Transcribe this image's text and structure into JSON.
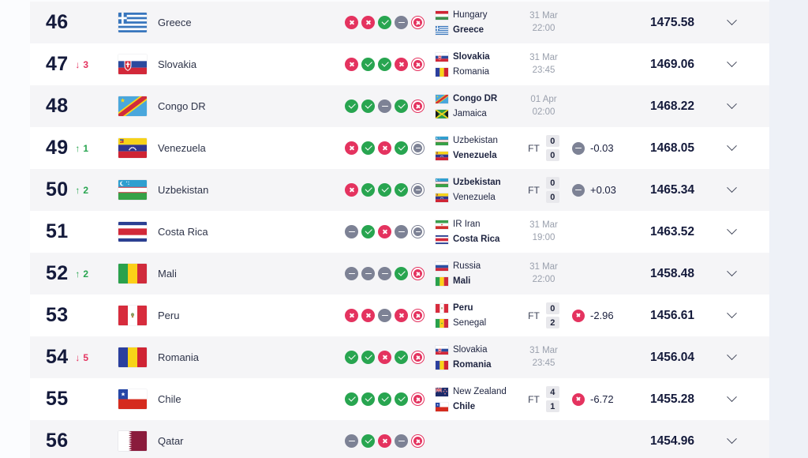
{
  "colors": {
    "win": "#28a550",
    "draw": "#7d8295",
    "loss": "#e4335f",
    "rank_up": "#28a550",
    "rank_down": "#e4335f",
    "rank_text": "#141a3b",
    "row_stripe": "#f5f5f7",
    "side_panel": "#eef1f7"
  },
  "icons": {
    "up_arrow_glyph": "↑",
    "down_arrow_glyph": "↓",
    "win_icon": "check-icon",
    "draw_icon": "minus-icon",
    "loss_icon": "cross-icon",
    "expand_icon": "chevron-down-icon"
  },
  "table": {
    "rows": [
      {
        "rank": "46",
        "movement": null,
        "country": "Greece",
        "flag": "greece",
        "form": [
          "L",
          "L",
          "W",
          "D",
          "L"
        ],
        "match": {
          "home": {
            "name": "Hungary",
            "flag": "hungary",
            "bold": false
          },
          "away": {
            "name": "Greece",
            "flag": "greece",
            "bold": true
          },
          "status": "scheduled",
          "date": "31 Mar",
          "time": "22:00"
        },
        "change": null,
        "points": "1475.58"
      },
      {
        "rank": "47",
        "movement": {
          "dir": "down",
          "value": "3"
        },
        "country": "Slovakia",
        "flag": "slovakia",
        "form": [
          "L",
          "W",
          "W",
          "L",
          "L"
        ],
        "match": {
          "home": {
            "name": "Slovakia",
            "flag": "slovakia",
            "bold": true
          },
          "away": {
            "name": "Romania",
            "flag": "romania",
            "bold": false
          },
          "status": "scheduled",
          "date": "31 Mar",
          "time": "23:45"
        },
        "change": null,
        "points": "1469.06"
      },
      {
        "rank": "48",
        "movement": null,
        "country": "Congo DR",
        "flag": "congo-dr",
        "form": [
          "W",
          "W",
          "D",
          "W",
          "L"
        ],
        "match": {
          "home": {
            "name": "Congo DR",
            "flag": "congo-dr",
            "bold": true
          },
          "away": {
            "name": "Jamaica",
            "flag": "jamaica",
            "bold": false
          },
          "status": "scheduled",
          "date": "01 Apr",
          "time": "02:00"
        },
        "change": null,
        "points": "1468.22"
      },
      {
        "rank": "49",
        "movement": {
          "dir": "up",
          "value": "1"
        },
        "country": "Venezuela",
        "flag": "venezuela",
        "form": [
          "L",
          "W",
          "L",
          "W",
          "D"
        ],
        "match": {
          "home": {
            "name": "Uzbekistan",
            "flag": "uzbekistan",
            "bold": false
          },
          "away": {
            "name": "Venezuela",
            "flag": "venezuela",
            "bold": true
          },
          "status": "ft",
          "ft_label": "FT",
          "home_score": "0",
          "away_score": "0"
        },
        "change": {
          "result": "D",
          "value": "-0.03"
        },
        "points": "1468.05"
      },
      {
        "rank": "50",
        "movement": {
          "dir": "up",
          "value": "2"
        },
        "country": "Uzbekistan",
        "flag": "uzbekistan",
        "form": [
          "L",
          "W",
          "W",
          "W",
          "D"
        ],
        "match": {
          "home": {
            "name": "Uzbekistan",
            "flag": "uzbekistan",
            "bold": true
          },
          "away": {
            "name": "Venezuela",
            "flag": "venezuela",
            "bold": false
          },
          "status": "ft",
          "ft_label": "FT",
          "home_score": "0",
          "away_score": "0"
        },
        "change": {
          "result": "D",
          "value": "+0.03"
        },
        "points": "1465.34"
      },
      {
        "rank": "51",
        "movement": null,
        "country": "Costa Rica",
        "flag": "costa-rica",
        "form": [
          "D",
          "W",
          "L",
          "D",
          "D"
        ],
        "match": {
          "home": {
            "name": "IR Iran",
            "flag": "ir-iran",
            "bold": false
          },
          "away": {
            "name": "Costa Rica",
            "flag": "costa-rica",
            "bold": true
          },
          "status": "scheduled",
          "date": "31 Mar",
          "time": "19:00"
        },
        "change": null,
        "points": "1463.52"
      },
      {
        "rank": "52",
        "movement": {
          "dir": "up",
          "value": "2"
        },
        "country": "Mali",
        "flag": "mali",
        "form": [
          "D",
          "D",
          "D",
          "W",
          "L"
        ],
        "match": {
          "home": {
            "name": "Russia",
            "flag": "russia",
            "bold": false
          },
          "away": {
            "name": "Mali",
            "flag": "mali",
            "bold": true
          },
          "status": "scheduled",
          "date": "31 Mar",
          "time": "22:00"
        },
        "change": null,
        "points": "1458.48"
      },
      {
        "rank": "53",
        "movement": null,
        "country": "Peru",
        "flag": "peru",
        "form": [
          "L",
          "L",
          "D",
          "L",
          "L"
        ],
        "match": {
          "home": {
            "name": "Peru",
            "flag": "peru",
            "bold": true
          },
          "away": {
            "name": "Senegal",
            "flag": "senegal",
            "bold": false
          },
          "status": "ft",
          "ft_label": "FT",
          "home_score": "0",
          "away_score": "2"
        },
        "change": {
          "result": "L",
          "value": "-2.96"
        },
        "points": "1456.61"
      },
      {
        "rank": "54",
        "movement": {
          "dir": "down",
          "value": "5"
        },
        "country": "Romania",
        "flag": "romania",
        "form": [
          "W",
          "W",
          "L",
          "W",
          "L"
        ],
        "match": {
          "home": {
            "name": "Slovakia",
            "flag": "slovakia",
            "bold": false
          },
          "away": {
            "name": "Romania",
            "flag": "romania",
            "bold": true
          },
          "status": "scheduled",
          "date": "31 Mar",
          "time": "23:45"
        },
        "change": null,
        "points": "1456.04"
      },
      {
        "rank": "55",
        "movement": null,
        "country": "Chile",
        "flag": "chile",
        "form": [
          "W",
          "W",
          "W",
          "W",
          "L"
        ],
        "match": {
          "home": {
            "name": "New Zealand",
            "flag": "new-zealand",
            "bold": false
          },
          "away": {
            "name": "Chile",
            "flag": "chile",
            "bold": true
          },
          "status": "ft",
          "ft_label": "FT",
          "home_score": "4",
          "away_score": "1"
        },
        "change": {
          "result": "L",
          "value": "-6.72"
        },
        "points": "1455.28"
      },
      {
        "rank": "56",
        "movement": null,
        "country": "Qatar",
        "flag": "qatar",
        "form": [
          "D",
          "W",
          "L",
          "D",
          "L"
        ],
        "match": null,
        "change": null,
        "points": "1454.96"
      }
    ]
  }
}
